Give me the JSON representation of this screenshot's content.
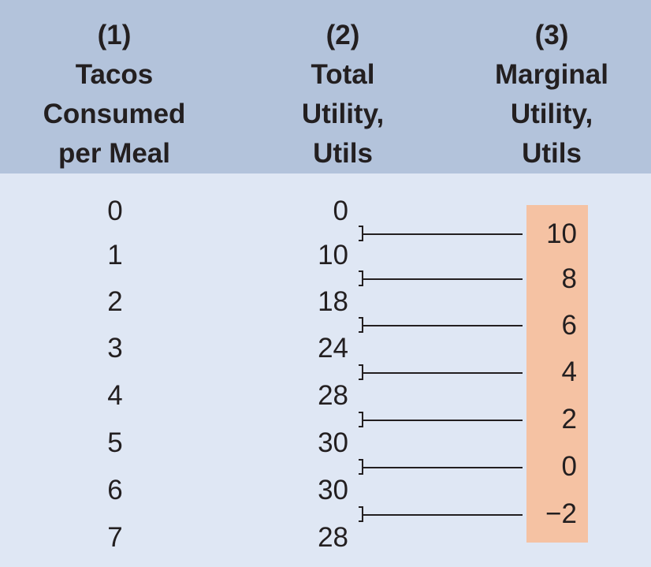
{
  "headers": [
    {
      "number": "(1)",
      "lines": [
        "Tacos",
        "Consumed",
        "per Meal"
      ]
    },
    {
      "number": "(2)",
      "lines": [
        "Total",
        "Utility,",
        "Utils"
      ]
    },
    {
      "number": "(3)",
      "lines": [
        "Marginal",
        "Utility,",
        "Utils"
      ]
    }
  ],
  "tacos": [
    "0",
    "1",
    "2",
    "3",
    "4",
    "5",
    "6",
    "7"
  ],
  "total_utility": [
    "0",
    "10",
    "18",
    "24",
    "28",
    "30",
    "30",
    "28"
  ],
  "marginal_utility": [
    "10",
    "8",
    "6",
    "4",
    "2",
    "0",
    "−2"
  ],
  "colors": {
    "header_bg": "#b3c3db",
    "body_bg": "#dfe7f4",
    "highlight": "#f5c2a3"
  }
}
